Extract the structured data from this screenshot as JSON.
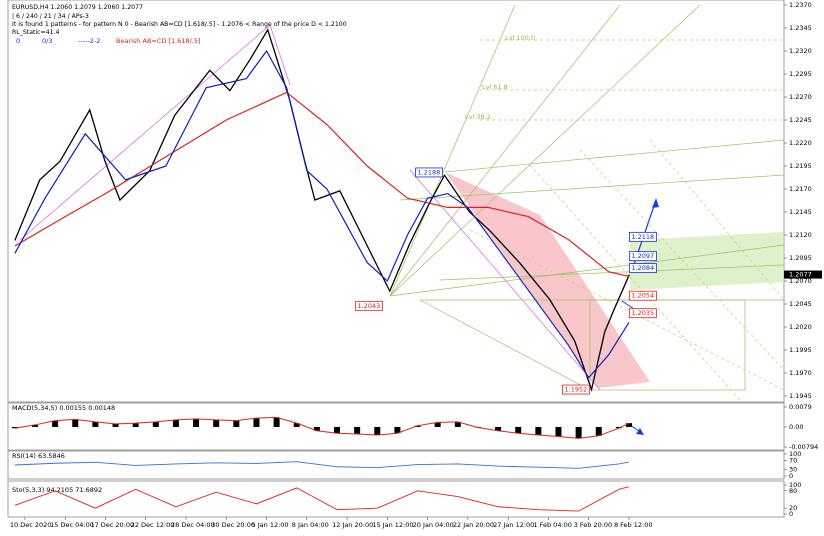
{
  "header": {
    "line1": "EURUSD,H4  1.2060 1.2079 1.2060 1.2077",
    "line2": "| 6 / 240 / 21 / 34 / APs-3",
    "line3": "It is found 1 patterns  -  for pattern N 0 - Bearish AB=CD [1.618/.5] - 1.2076 < Range of the price D < 1.2100",
    "line4": "RL_Static=41.4",
    "counter_a": "0",
    "counter_b": "0/3",
    "counter_c": "-----2-2",
    "pattern_name": "Bearish AB=CD [1.618/.5]"
  },
  "main_chart": {
    "ylim": [
      1.1945,
      1.237
    ],
    "xlim": [
      -0.42,
      18.85
    ],
    "yticks": [
      {
        "value": 1.237,
        "label": "1.2370"
      },
      1.2345,
      {
        "value": 1.232,
        "label": "1.2320"
      },
      1.2295,
      {
        "value": 1.227,
        "label": "1.2270"
      },
      1.2245,
      {
        "value": 1.222,
        "label": "1.2220"
      },
      1.2195,
      {
        "value": 1.217,
        "label": "1.2170"
      },
      1.2145,
      {
        "value": 1.212,
        "label": "1.2120"
      },
      1.2095,
      {
        "value": 1.207,
        "label": "1.2070"
      },
      1.2045,
      {
        "value": 1.202,
        "label": "1.2020"
      },
      1.1995,
      {
        "value": 1.197,
        "label": "1.1970"
      },
      1.1945
    ],
    "categories": [
      "10 Dec 2020",
      "15 Dec 04:00",
      "17 Dec 20:00",
      "22 Dec 12:00",
      "28 Dec 04:00",
      "30 Dec 20:00",
      "5 Jan 12:00",
      "8 Jan 04:00",
      "12 Jan 20:00",
      "15 Jan 12:00",
      "20 Jan 04:00",
      "22 Jan 20:00",
      "27 Jan 12:00",
      "1 Feb 04:00",
      "3 Feb 20:00",
      "8 Feb 12:00"
    ],
    "current_price": 1.2077,
    "series": [
      {
        "name": "price",
        "color": "#000000",
        "x": [
          -0.25,
          0.37,
          0.87,
          1.61,
          1.99,
          2.36,
          3.1,
          3.72,
          4.59,
          5.09,
          5.58,
          6.03,
          6.58,
          6.95,
          7.2,
          7.82,
          8.56,
          9.06,
          9.55,
          10.05,
          10.42,
          11.04,
          11.54,
          12.28,
          13.03,
          13.65,
          14.07,
          14.4,
          14.64,
          15.01
        ],
        "values": [
          1.2114,
          1.218,
          1.22,
          1.2256,
          1.22,
          1.2158,
          1.219,
          1.225,
          1.2299,
          1.2277,
          1.231,
          1.2343,
          1.2266,
          1.22,
          1.2158,
          1.2168,
          1.2103,
          1.2059,
          1.211,
          1.2155,
          1.2185,
          1.2145,
          1.2125,
          1.209,
          1.205,
          1.2005,
          1.1952,
          1.2015,
          1.204,
          1.2077
        ]
      },
      {
        "name": "slow-ma",
        "color": "#e02020",
        "x": [
          -0.25,
          1.0,
          2.0,
          3.5,
          5.0,
          6.5,
          7.5,
          8.5,
          9.5,
          10.5,
          11.5,
          12.5,
          13.5,
          14.5,
          15.0
        ],
        "values": [
          1.2108,
          1.214,
          1.2165,
          1.2205,
          1.2245,
          1.2275,
          1.224,
          1.2195,
          1.216,
          1.215,
          1.215,
          1.214,
          1.2115,
          1.208,
          1.2075
        ]
      },
      {
        "name": "fast-ma",
        "color": "#1020c0",
        "x": [
          -0.25,
          0.5,
          1.5,
          2.5,
          3.5,
          4.5,
          5.5,
          6.0,
          6.5,
          7.0,
          7.5,
          8.0,
          8.5,
          9.0,
          9.5,
          10.0,
          10.5,
          11.0,
          11.5,
          12.0,
          12.5,
          13.0,
          13.5,
          14.0,
          14.5,
          15.0
        ],
        "values": [
          1.21,
          1.216,
          1.223,
          1.218,
          1.2195,
          1.228,
          1.229,
          1.232,
          1.228,
          1.219,
          1.217,
          1.213,
          1.209,
          1.207,
          1.212,
          1.216,
          1.2165,
          1.215,
          1.212,
          1.209,
          1.206,
          1.203,
          1.2,
          1.1965,
          1.199,
          1.2025
        ]
      }
    ],
    "price_labels": [
      {
        "value": 1.2188,
        "x": 9.75,
        "style": "blue"
      },
      {
        "value": 1.2043,
        "x": 8.26,
        "style": "red"
      },
      {
        "value": 1.1952,
        "x": 13.4,
        "style": "red"
      },
      {
        "value": 1.2054,
        "x": 15.06,
        "style": "red"
      },
      {
        "value": 1.2035,
        "x": 15.06,
        "style": "red"
      },
      {
        "value": 1.2084,
        "x": 15.06,
        "style": "blue"
      },
      {
        "value": 1.2097,
        "x": 15.06,
        "style": "blue"
      },
      {
        "value": 1.2118,
        "x": 15.06,
        "style": "blue"
      }
    ],
    "fib_labels": [
      "Lvl 100.0",
      "Lvl 61.8",
      "Lvl 38.2"
    ]
  },
  "macd": {
    "label": "MACD(5,34,5) 0.00155 0.00148",
    "ylim": [
      -0.00794,
      0.0079
    ],
    "yticks": [
      0.0079,
      {
        "value": 0,
        "label": "0.00"
      },
      -0.00794
    ],
    "x": [
      -0.25,
      0.25,
      0.75,
      1.25,
      1.75,
      2.25,
      2.75,
      3.25,
      3.75,
      4.25,
      4.75,
      5.25,
      5.75,
      6.25,
      6.75,
      7.25,
      7.75,
      8.25,
      8.75,
      9.25,
      9.75,
      10.25,
      10.75,
      11.25,
      11.75,
      12.25,
      12.75,
      13.25,
      13.75,
      14.25,
      14.75,
      15.0
    ],
    "values": [
      -0.0005,
      0.0008,
      0.0025,
      0.003,
      0.002,
      0.0012,
      0.0015,
      0.002,
      0.0028,
      0.0032,
      0.0028,
      0.0025,
      0.0035,
      0.0038,
      0.0015,
      -0.0015,
      -0.0025,
      -0.0028,
      -0.0032,
      -0.0025,
      0.0005,
      0.0018,
      0.002,
      -0.0002,
      -0.0015,
      -0.0025,
      -0.0032,
      -0.0038,
      -0.0045,
      -0.0035,
      -0.0005,
      0.0015
    ]
  },
  "rsi": {
    "label": "RSI(14) 63.5846",
    "ylim": [
      0,
      100
    ],
    "yticks": [
      100,
      70,
      30,
      0
    ],
    "x": [
      -0.25,
      0.75,
      1.75,
      2.75,
      3.75,
      4.75,
      5.75,
      6.75,
      7.75,
      8.75,
      9.75,
      10.75,
      11.75,
      12.75,
      13.75,
      14.75,
      15.0
    ],
    "values": [
      50,
      58,
      62,
      48,
      55,
      60,
      57,
      65,
      42,
      38,
      52,
      55,
      45,
      40,
      35,
      55,
      63.58
    ]
  },
  "stoch": {
    "label": "Sto(5,3,3) 94.2105 71.6892",
    "ylim": [
      0,
      100
    ],
    "yticks": [
      100,
      80,
      20,
      0
    ],
    "x": [
      -0.25,
      0.75,
      1.75,
      2.75,
      3.75,
      4.75,
      5.75,
      6.75,
      7.75,
      8.75,
      9.75,
      10.75,
      11.75,
      12.75,
      13.75,
      14.75,
      15.0
    ],
    "values": [
      30,
      80,
      20,
      85,
      25,
      75,
      35,
      90,
      15,
      20,
      80,
      60,
      25,
      15,
      10,
      85,
      94.21
    ]
  }
}
